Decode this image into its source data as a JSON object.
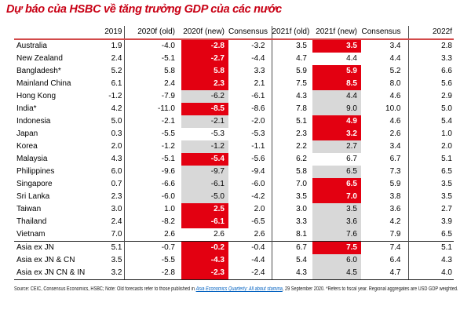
{
  "title": "Dự báo của HSBC về tăng trưởng GDP của các nước",
  "accent_colors": {
    "highlight_red": "#e30011",
    "highlight_gray": "#d8d8d8",
    "title_red": "#c80014"
  },
  "chart_data": {
    "type": "table",
    "title": "Dự báo của HSBC về tăng trưởng GDP của các nước",
    "columns": [
      "",
      "2019",
      "2020f (old)",
      "2020f (new)",
      "Consensus",
      "2021f (old)",
      "2021f (new)",
      "Consensus",
      "2022f"
    ],
    "highlight_note": "h20 = highlight of '2020f (new)' cell, h21 = highlight of '2021f (new)' cell; red = downgraded/changed forecast highlight, gray = neutral highlight, none = no fill",
    "rows": [
      {
        "name": "Australia",
        "values": [
          "1.9",
          "-4.0",
          "-2.8",
          "-3.2",
          "3.5",
          "3.5",
          "3.4",
          "2.8"
        ],
        "h20": "red",
        "h21": "red",
        "section": false
      },
      {
        "name": "New Zealand",
        "values": [
          "2.4",
          "-5.1",
          "-2.7",
          "-4.4",
          "4.7",
          "4.4",
          "4.4",
          "3.3"
        ],
        "h20": "red",
        "h21": "none",
        "section": false
      },
      {
        "name": "Bangladesh*",
        "values": [
          "5.2",
          "5.8",
          "5.8",
          "3.3",
          "5.9",
          "5.9",
          "5.2",
          "6.6"
        ],
        "h20": "red",
        "h21": "red",
        "section": false
      },
      {
        "name": "Mainland China",
        "values": [
          "6.1",
          "2.4",
          "2.3",
          "2.1",
          "7.5",
          "8.5",
          "8.0",
          "5.6"
        ],
        "h20": "red",
        "h21": "red",
        "section": false
      },
      {
        "name": "Hong Kong",
        "values": [
          "-1.2",
          "-7.9",
          "-6.2",
          "-6.1",
          "4.3",
          "4.4",
          "4.6",
          "2.9"
        ],
        "h20": "gray",
        "h21": "gray",
        "section": false
      },
      {
        "name": "India*",
        "values": [
          "4.2",
          "-11.0",
          "-8.5",
          "-8.6",
          "7.8",
          "9.0",
          "10.0",
          "5.0"
        ],
        "h20": "red",
        "h21": "gray",
        "section": false
      },
      {
        "name": "Indonesia",
        "values": [
          "5.0",
          "-2.1",
          "-2.1",
          "-2.0",
          "5.1",
          "4.9",
          "4.6",
          "5.4"
        ],
        "h20": "gray",
        "h21": "red",
        "section": false
      },
      {
        "name": "Japan",
        "values": [
          "0.3",
          "-5.5",
          "-5.3",
          "-5.3",
          "2.3",
          "3.2",
          "2.6",
          "1.0"
        ],
        "h20": "none",
        "h21": "red",
        "section": false
      },
      {
        "name": "Korea",
        "values": [
          "2.0",
          "-1.2",
          "-1.2",
          "-1.1",
          "2.2",
          "2.7",
          "3.4",
          "2.0"
        ],
        "h20": "gray",
        "h21": "gray",
        "section": false
      },
      {
        "name": "Malaysia",
        "values": [
          "4.3",
          "-5.1",
          "-5.4",
          "-5.6",
          "6.2",
          "6.7",
          "6.7",
          "5.1"
        ],
        "h20": "red",
        "h21": "none",
        "section": false
      },
      {
        "name": "Philippines",
        "values": [
          "6.0",
          "-9.6",
          "-9.7",
          "-9.4",
          "5.8",
          "6.5",
          "7.3",
          "6.5"
        ],
        "h20": "gray",
        "h21": "gray",
        "section": false
      },
      {
        "name": "Singapore",
        "values": [
          "0.7",
          "-6.6",
          "-6.1",
          "-6.0",
          "7.0",
          "6.5",
          "5.9",
          "3.5"
        ],
        "h20": "gray",
        "h21": "red",
        "section": false
      },
      {
        "name": "Sri Lanka",
        "values": [
          "2.3",
          "-6.0",
          "-5.0",
          "-4.2",
          "3.5",
          "7.0",
          "3.8",
          "3.5"
        ],
        "h20": "gray",
        "h21": "red",
        "section": false
      },
      {
        "name": "Taiwan",
        "values": [
          "3.0",
          "1.0",
          "2.5",
          "2.0",
          "3.0",
          "3.5",
          "3.6",
          "2.7"
        ],
        "h20": "red",
        "h21": "gray",
        "section": false
      },
      {
        "name": "Thailand",
        "values": [
          "2.4",
          "-8.2",
          "-6.1",
          "-6.5",
          "3.3",
          "3.6",
          "4.2",
          "3.9"
        ],
        "h20": "red",
        "h21": "gray",
        "section": false
      },
      {
        "name": "Vietnam",
        "values": [
          "7.0",
          "2.6",
          "2.6",
          "2.6",
          "8.1",
          "7.6",
          "7.9",
          "6.5"
        ],
        "h20": "none",
        "h21": "gray",
        "section": false
      },
      {
        "name": "Asia ex JN",
        "values": [
          "5.1",
          "-0.7",
          "-0.2",
          "-0.4",
          "6.7",
          "7.5",
          "7.4",
          "5.1"
        ],
        "h20": "red",
        "h21": "red",
        "section": true
      },
      {
        "name": "Asia ex JN & CN",
        "values": [
          "3.5",
          "-5.5",
          "-4.3",
          "-4.4",
          "5.4",
          "6.0",
          "6.4",
          "4.3"
        ],
        "h20": "red",
        "h21": "gray",
        "section": false
      },
      {
        "name": "Asia ex JN CN & IN",
        "values": [
          "3.2",
          "-2.8",
          "-2.3",
          "-2.4",
          "4.3",
          "4.5",
          "4.7",
          "4.0"
        ],
        "h20": "red",
        "h21": "gray",
        "section": false
      }
    ]
  },
  "footer": {
    "prefix": "Source: CEIC, Consensus Economics, HSBC; Note: Old forecasts refer to those published in ",
    "link_text": "Asia Economics Quarterly: All about stamina",
    "suffix": ", 29 September 2020. *Refers to fiscal year. Regional aggregates are USD GDP weighted."
  }
}
